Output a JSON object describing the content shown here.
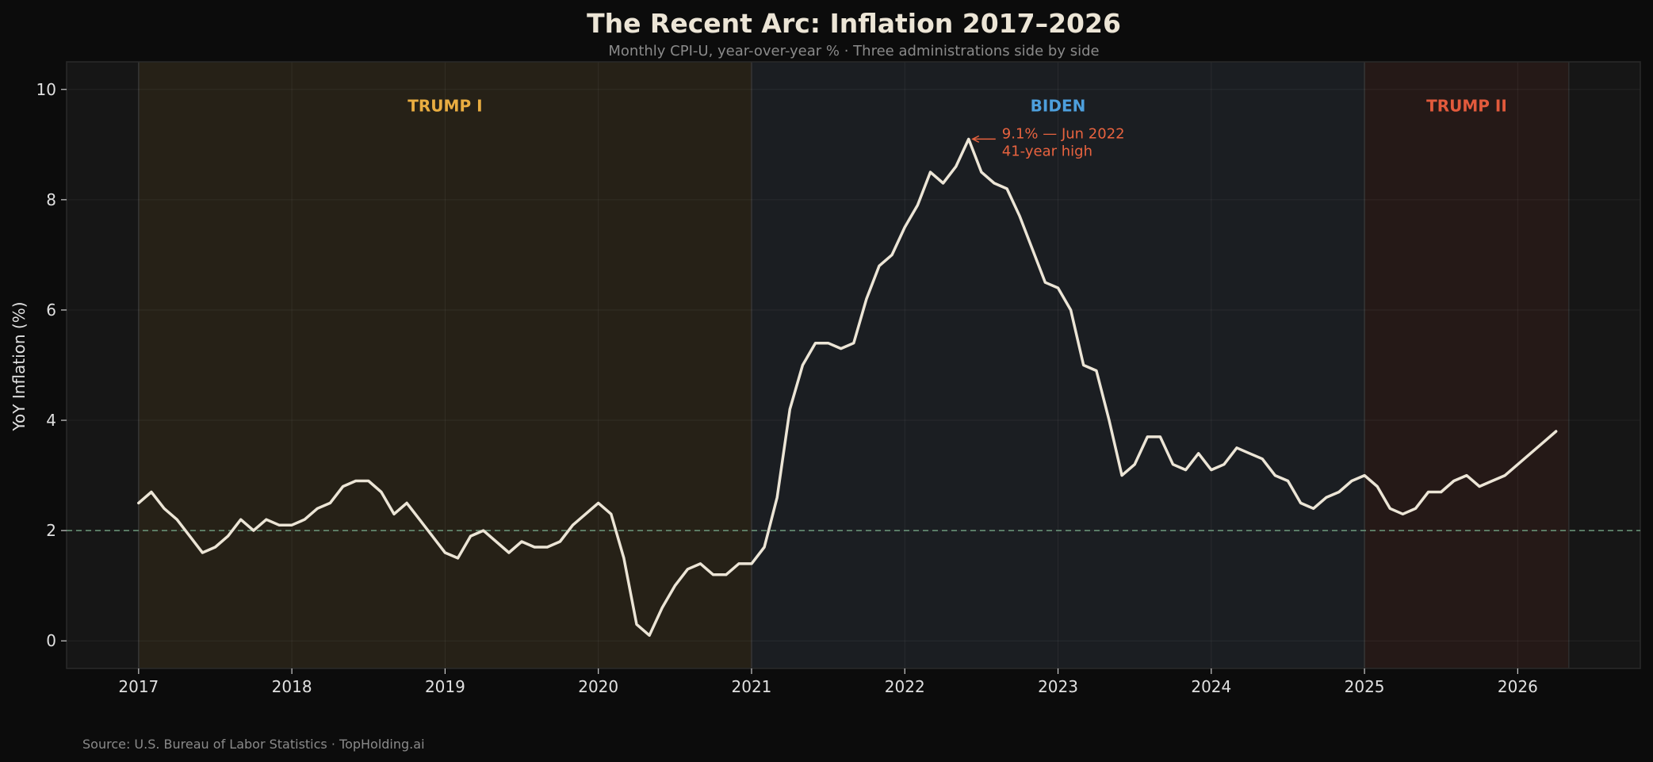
{
  "title": "The Recent Arc: Inflation 2017–2026",
  "subtitle": "Monthly CPI-U, year-over-year % · Three administrations side by side",
  "source": "Source: U.S. Bureau of Labor Statistics · TopHolding.ai",
  "colors": {
    "background": "#0c0c0c",
    "plot_bg": "#161616",
    "line": "#ece5d6",
    "target_line": "#6e9a7e",
    "annotation": "#e8633f",
    "trump1": "#e9ad41",
    "biden": "#4d9fdc",
    "trump2": "#e25a3c",
    "trump1_band": "#262117",
    "biden_band": "#1b1e22",
    "trump2_band": "#251917"
  },
  "chart_data": {
    "type": "line",
    "title": "The Recent Arc: Inflation 2017–2026",
    "subtitle": "Monthly CPI-U, year-over-year % · Three administrations side by side",
    "xlabel": "",
    "ylabel": "YoY Inflation (%)",
    "xlim": [
      2016.53,
      2026.8
    ],
    "ylim": [
      -0.5,
      10.5
    ],
    "x_ticks": [
      "2017",
      "2018",
      "2019",
      "2020",
      "2021",
      "2022",
      "2023",
      "2024",
      "2025",
      "2026"
    ],
    "y_ticks": [
      "0",
      "2",
      "4",
      "6",
      "8",
      "10"
    ],
    "grid": true,
    "reference_line": {
      "y": 2,
      "style": "dashed"
    },
    "eras": [
      {
        "label": "TRUMP I",
        "start": "2017-01",
        "end": "2021-01",
        "color": "#e9ad41"
      },
      {
        "label": "BIDEN",
        "start": "2021-01",
        "end": "2025-01",
        "color": "#4d9fdc"
      },
      {
        "label": "TRUMP II",
        "start": "2025-01",
        "end": "2026-05",
        "color": "#e25a3c"
      }
    ],
    "annotation": {
      "x": "2022-06",
      "y": 9.1,
      "line1": "9.1% — Jun 2022",
      "line2": "41-year high"
    },
    "series": [
      {
        "x": [
          "2017-01",
          "2017-02",
          "2017-03",
          "2017-04",
          "2017-05",
          "2017-06",
          "2017-07",
          "2017-08",
          "2017-09",
          "2017-10",
          "2017-11",
          "2017-12",
          "2018-01",
          "2018-02",
          "2018-03",
          "2018-04",
          "2018-05",
          "2018-06",
          "2018-07",
          "2018-08",
          "2018-09",
          "2018-10",
          "2018-11",
          "2018-12",
          "2019-01",
          "2019-02",
          "2019-03",
          "2019-04",
          "2019-05",
          "2019-06",
          "2019-07",
          "2019-08",
          "2019-09",
          "2019-10",
          "2019-11",
          "2019-12",
          "2020-01",
          "2020-02",
          "2020-03",
          "2020-04",
          "2020-05",
          "2020-06",
          "2020-07",
          "2020-08",
          "2020-09",
          "2020-10",
          "2020-11",
          "2020-12",
          "2021-01",
          "2021-02",
          "2021-03",
          "2021-04",
          "2021-05",
          "2021-06",
          "2021-07",
          "2021-08",
          "2021-09",
          "2021-10",
          "2021-11",
          "2021-12",
          "2022-01",
          "2022-02",
          "2022-03",
          "2022-04",
          "2022-05",
          "2022-06",
          "2022-07",
          "2022-08",
          "2022-09",
          "2022-10",
          "2022-11",
          "2022-12",
          "2023-01",
          "2023-02",
          "2023-03",
          "2023-04",
          "2023-05",
          "2023-06",
          "2023-07",
          "2023-08",
          "2023-09",
          "2023-10",
          "2023-11",
          "2023-12",
          "2024-01",
          "2024-02",
          "2024-03",
          "2024-04",
          "2024-05",
          "2024-06",
          "2024-07",
          "2024-08",
          "2024-09",
          "2024-10",
          "2024-11",
          "2024-12",
          "2025-01",
          "2025-02",
          "2025-03",
          "2025-04",
          "2025-05",
          "2025-06",
          "2025-07",
          "2025-08",
          "2025-09",
          "2025-10",
          "2025-11",
          "2025-12",
          "2026-01",
          "2026-02",
          "2026-03",
          "2026-04"
        ],
        "values": [
          2.5,
          2.7,
          2.4,
          2.2,
          1.9,
          1.6,
          1.7,
          1.9,
          2.2,
          2.0,
          2.2,
          2.1,
          2.1,
          2.2,
          2.4,
          2.5,
          2.8,
          2.9,
          2.9,
          2.7,
          2.3,
          2.5,
          2.2,
          1.9,
          1.6,
          1.5,
          1.9,
          2.0,
          1.8,
          1.6,
          1.8,
          1.7,
          1.7,
          1.8,
          2.1,
          2.3,
          2.5,
          2.3,
          1.5,
          0.3,
          0.1,
          0.6,
          1.0,
          1.3,
          1.4,
          1.2,
          1.2,
          1.4,
          1.4,
          1.7,
          2.6,
          4.2,
          5.0,
          5.4,
          5.4,
          5.3,
          5.4,
          6.2,
          6.8,
          7.0,
          7.5,
          7.9,
          8.5,
          8.3,
          8.6,
          9.1,
          8.5,
          8.3,
          8.2,
          7.7,
          7.1,
          6.5,
          6.4,
          6.0,
          5.0,
          4.9,
          4.0,
          3.0,
          3.2,
          3.7,
          3.7,
          3.2,
          3.1,
          3.4,
          3.1,
          3.2,
          3.5,
          3.4,
          3.3,
          3.0,
          2.9,
          2.5,
          2.4,
          2.6,
          2.7,
          2.9,
          3.0,
          2.8,
          2.4,
          2.3,
          2.4,
          2.7,
          2.7,
          2.9,
          3.0,
          2.8,
          2.9,
          3.0,
          3.2,
          3.4,
          3.6,
          3.8
        ]
      }
    ]
  }
}
